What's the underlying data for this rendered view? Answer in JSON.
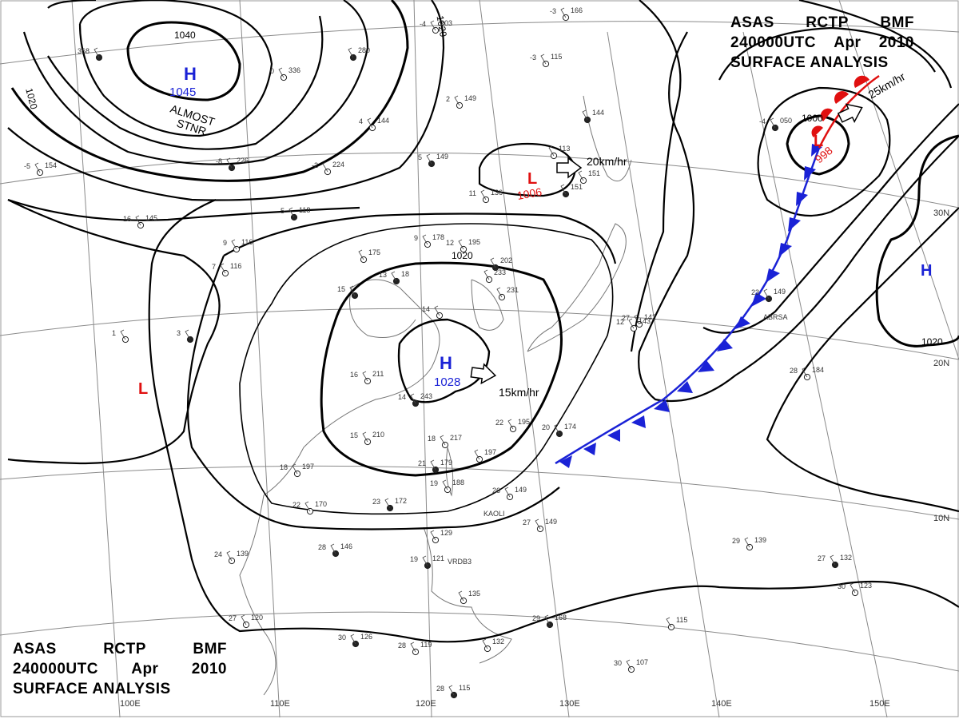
{
  "title": {
    "agency": "ASAS",
    "station": "RCTP",
    "office": "BMF",
    "time": "240000UTC",
    "month": "Apr",
    "year": "2010",
    "type": "SURFACE ANALYSIS"
  },
  "colors": {
    "isobar": "#000000",
    "high": "#1a22d6",
    "low": "#e01010",
    "cold_front": "#1a22d6",
    "warm_front": "#e01010",
    "grid": "#888888",
    "coast": "#777777"
  },
  "isobar_labels": {
    "i1040": "1040",
    "i1020_nw": "1020",
    "i1020_cw": "1020",
    "i1020_c": "1020",
    "i1000": "1000",
    "i1020_e": "1020"
  },
  "pressure_systems": [
    {
      "kind": "H",
      "value": "1045",
      "note1": "ALMOST",
      "note2": "STNR"
    },
    {
      "kind": "H",
      "value": "1028",
      "motion": "15km/hr"
    },
    {
      "kind": "L",
      "value": "1006",
      "motion": "20km/hr"
    },
    {
      "kind": "L",
      "value": "998",
      "motion": "25km/hr"
    },
    {
      "kind": "L",
      "value": ""
    },
    {
      "kind": "H",
      "value": ""
    }
  ],
  "longitude_labels": [
    "100E",
    "110E",
    "120E",
    "130E",
    "140E",
    "150E"
  ],
  "latitude_labels": [
    "30N",
    "20N",
    "10N"
  ],
  "station_ids": [
    "VRDB3",
    "KAOLI",
    "ABRSA"
  ],
  "stations": [
    {
      "t": "368",
      "p": ""
    },
    {
      "t": "-4",
      "p": "203"
    },
    {
      "t": "-3",
      "p": "166"
    },
    {
      "t": "",
      "p": "280"
    },
    {
      "t": "0",
      "p": "336"
    },
    {
      "t": "4",
      "p": "144"
    },
    {
      "t": "5",
      "p": "149"
    },
    {
      "t": "2",
      "p": "149"
    },
    {
      "t": "-2",
      "p": "224"
    },
    {
      "t": "-8",
      "p": "226"
    },
    {
      "t": "-5",
      "p": "154"
    },
    {
      "t": "16",
      "p": "145"
    },
    {
      "t": "5",
      "p": "118"
    },
    {
      "t": "9",
      "p": "116"
    },
    {
      "t": "7",
      "p": "116"
    },
    {
      "t": "3",
      "p": ""
    },
    {
      "t": "1",
      "p": ""
    },
    {
      "t": "",
      "p": "175"
    },
    {
      "t": "13",
      "p": "18"
    },
    {
      "t": "9",
      "p": "178"
    },
    {
      "t": "12",
      "p": "195"
    },
    {
      "t": "",
      "p": "202"
    },
    {
      "t": "",
      "p": "233"
    },
    {
      "t": "",
      "p": "231"
    },
    {
      "t": "15",
      "p": ""
    },
    {
      "t": "14",
      "p": ""
    },
    {
      "t": "16",
      "p": "211"
    },
    {
      "t": "14",
      "p": "243"
    },
    {
      "t": "15",
      "p": "210"
    },
    {
      "t": "18",
      "p": "217"
    },
    {
      "t": "21",
      "p": "179"
    },
    {
      "t": "19",
      "p": "188"
    },
    {
      "t": "22",
      "p": "195"
    },
    {
      "t": "20",
      "p": "174"
    },
    {
      "t": "",
      "p": "197"
    },
    {
      "t": "18",
      "p": "197"
    },
    {
      "t": "23",
      "p": "172"
    },
    {
      "t": "26",
      "p": "149"
    },
    {
      "t": "22",
      "p": "170"
    },
    {
      "t": "28",
      "p": "146"
    },
    {
      "t": "24",
      "p": "139"
    },
    {
      "t": "27",
      "p": "120"
    },
    {
      "t": "30",
      "p": "126"
    },
    {
      "t": "28",
      "p": "119"
    },
    {
      "t": "",
      "p": "129"
    },
    {
      "t": "19",
      "p": "121"
    },
    {
      "t": "",
      "p": "135"
    },
    {
      "t": "",
      "p": "132"
    },
    {
      "t": "29",
      "p": "168"
    },
    {
      "t": "",
      "p": "115"
    },
    {
      "t": "30",
      "p": "107"
    },
    {
      "t": "28",
      "p": "115"
    },
    {
      "t": "27",
      "p": "149"
    },
    {
      "t": "29",
      "p": "139"
    },
    {
      "t": "27",
      "p": "132"
    },
    {
      "t": "30",
      "p": "123"
    },
    {
      "t": "28",
      "p": "184"
    },
    {
      "t": "23",
      "p": "149"
    },
    {
      "t": "27",
      "p": "142"
    },
    {
      "t": "12",
      "p": "143"
    },
    {
      "t": "-4",
      "p": "050"
    },
    {
      "t": "11",
      "p": "136"
    },
    {
      "t": "-3",
      "p": "115"
    },
    {
      "t": "",
      "p": "144"
    },
    {
      "t": "",
      "p": "151"
    },
    {
      "t": "",
      "p": "113"
    },
    {
      "t": "",
      "p": "151"
    }
  ]
}
